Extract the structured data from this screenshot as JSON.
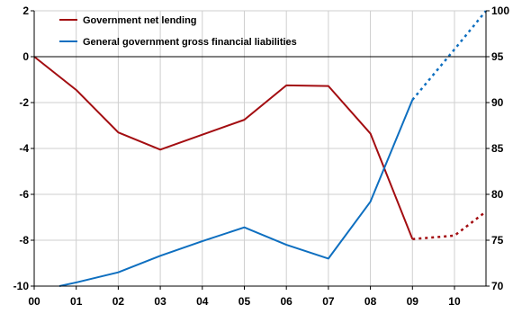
{
  "chart_data": {
    "type": "line",
    "categories": [
      "00",
      "01",
      "02",
      "03",
      "04",
      "05",
      "06",
      "07",
      "08",
      "09",
      "10"
    ],
    "x_extends_to": 10.75,
    "grid": true,
    "legend_placement": "top-left",
    "left_axis": {
      "ylim": [
        -10,
        2
      ],
      "ticks": [
        2,
        0,
        -2,
        -4,
        -6,
        -8,
        -10
      ]
    },
    "right_axis": {
      "ylim": [
        70,
        100
      ],
      "ticks": [
        100,
        95,
        90,
        85,
        80,
        75,
        70
      ]
    },
    "series": [
      {
        "name": "Government net lending",
        "axis": "left",
        "color": "#a30d11",
        "x": [
          0,
          1,
          2,
          3,
          4,
          5,
          6,
          7,
          8,
          9,
          10,
          10.75
        ],
        "values": [
          0.0,
          -1.45,
          -3.3,
          -4.05,
          -3.4,
          -2.75,
          -1.25,
          -1.28,
          -3.35,
          -7.95,
          -7.8,
          -6.75
        ],
        "projection_from_index": 9
      },
      {
        "name": "General government gross financial liabilities",
        "axis": "right",
        "color": "#0e6fc0",
        "x": [
          0.6,
          1,
          2,
          3,
          4,
          5,
          6,
          7,
          8,
          9,
          10,
          10.75
        ],
        "values": [
          70.0,
          70.4,
          71.5,
          73.3,
          74.9,
          76.4,
          74.5,
          73.0,
          79.2,
          90.3,
          95.8,
          100.0
        ],
        "projection_from_index": 9
      }
    ]
  }
}
